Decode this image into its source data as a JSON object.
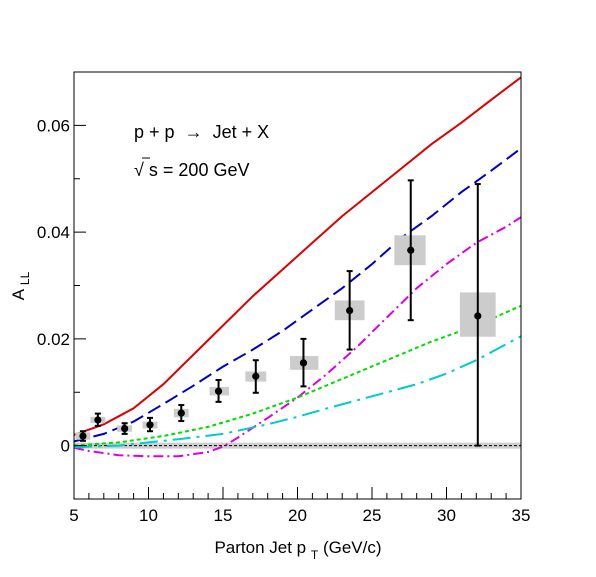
{
  "chart_data": {
    "type": "scatter",
    "annotations": {
      "process_prefix": "p + p",
      "process_arrow": "→",
      "process_suffix": "Jet + X",
      "energy_sqrt": "√",
      "energy_rest": "s = 200 GeV"
    },
    "xlabel": {
      "main": "Parton Jet p",
      "sub": "T",
      "tail": " (GeV/c)"
    },
    "ylabel": {
      "main": "A",
      "sub": "LL"
    },
    "xlim": [
      5,
      35
    ],
    "ylim": [
      -0.01,
      0.07
    ],
    "x_ticks": [
      {
        "v": 5,
        "label": "5"
      },
      {
        "v": 10,
        "label": "10"
      },
      {
        "v": 15,
        "label": "15"
      },
      {
        "v": 20,
        "label": "20"
      },
      {
        "v": 25,
        "label": "25"
      },
      {
        "v": 30,
        "label": "30"
      },
      {
        "v": 35,
        "label": "35"
      }
    ],
    "y_ticks": [
      {
        "v": 0,
        "label": "0"
      },
      {
        "v": 0.02,
        "label": "0.02"
      },
      {
        "v": 0.04,
        "label": "0.04"
      },
      {
        "v": 0.06,
        "label": "0.06"
      }
    ],
    "grid": false,
    "zero_line": 0,
    "series": [
      {
        "color": "#000000",
        "points": [
          {
            "x": 5.6,
            "y": 0.0018,
            "ylo": 0.0009,
            "yhi": 0.0027,
            "sxlo": 5.1,
            "sxhi": 6.1,
            "sylo": 0.0011,
            "syhi": 0.0025
          },
          {
            "x": 6.6,
            "y": 0.0048,
            "ylo": 0.0037,
            "yhi": 0.006,
            "sxlo": 6.1,
            "sxhi": 7.1,
            "sylo": 0.0042,
            "syhi": 0.0054
          },
          {
            "x": 8.4,
            "y": 0.0032,
            "ylo": 0.0022,
            "yhi": 0.0042,
            "sxlo": 7.9,
            "sxhi": 8.9,
            "sylo": 0.0026,
            "syhi": 0.0038
          },
          {
            "x": 10.1,
            "y": 0.0039,
            "ylo": 0.0027,
            "yhi": 0.0052,
            "sxlo": 9.6,
            "sxhi": 10.6,
            "sylo": 0.0032,
            "syhi": 0.0045
          },
          {
            "x": 12.2,
            "y": 0.0061,
            "ylo": 0.0046,
            "yhi": 0.0076,
            "sxlo": 11.7,
            "sxhi": 12.7,
            "sylo": 0.0053,
            "syhi": 0.0069
          },
          {
            "x": 14.7,
            "y": 0.0102,
            "ylo": 0.0082,
            "yhi": 0.0123,
            "sxlo": 14.1,
            "sxhi": 15.4,
            "sylo": 0.0094,
            "syhi": 0.011
          },
          {
            "x": 17.2,
            "y": 0.013,
            "ylo": 0.0099,
            "yhi": 0.016,
            "sxlo": 16.5,
            "sxhi": 17.9,
            "sylo": 0.012,
            "syhi": 0.0139
          },
          {
            "x": 20.4,
            "y": 0.0155,
            "ylo": 0.0111,
            "yhi": 0.02,
            "sxlo": 19.5,
            "sxhi": 21.4,
            "sylo": 0.0142,
            "syhi": 0.0168
          },
          {
            "x": 23.5,
            "y": 0.0253,
            "ylo": 0.018,
            "yhi": 0.0327,
            "sxlo": 22.5,
            "sxhi": 24.5,
            "sylo": 0.0235,
            "syhi": 0.0272
          },
          {
            "x": 27.6,
            "y": 0.0366,
            "ylo": 0.0235,
            "yhi": 0.0497,
            "sxlo": 26.5,
            "sxhi": 28.6,
            "sylo": 0.0338,
            "syhi": 0.0394
          },
          {
            "x": 32.1,
            "y": 0.0243,
            "ylo": 0.0,
            "yhi": 0.049,
            "sxlo": 30.9,
            "sxhi": 33.3,
            "sylo": 0.0204,
            "syhi": 0.0287
          }
        ]
      }
    ],
    "curves": [
      {
        "color": "#dd0000",
        "style": "solid",
        "points": [
          [
            5,
            0.002
          ],
          [
            7,
            0.004
          ],
          [
            9,
            0.007
          ],
          [
            11,
            0.0115
          ],
          [
            13,
            0.017
          ],
          [
            15,
            0.0225
          ],
          [
            17,
            0.028
          ],
          [
            19,
            0.033
          ],
          [
            21,
            0.038
          ],
          [
            23,
            0.043
          ],
          [
            25,
            0.0475
          ],
          [
            27,
            0.052
          ],
          [
            29,
            0.0565
          ],
          [
            31,
            0.0605
          ],
          [
            33,
            0.0648
          ],
          [
            35,
            0.069
          ]
        ]
      },
      {
        "color": "#0000cc",
        "style": "dashed",
        "points": [
          [
            5,
            0.0008
          ],
          [
            7,
            0.0022
          ],
          [
            9,
            0.0045
          ],
          [
            11,
            0.0078
          ],
          [
            13,
            0.0112
          ],
          [
            15,
            0.0148
          ],
          [
            17,
            0.018
          ],
          [
            19,
            0.0215
          ],
          [
            21,
            0.0255
          ],
          [
            23,
            0.0295
          ],
          [
            25,
            0.034
          ],
          [
            27,
            0.039
          ],
          [
            29,
            0.043
          ],
          [
            31,
            0.0475
          ],
          [
            33,
            0.0515
          ],
          [
            35,
            0.0557
          ]
        ]
      },
      {
        "color": "#dd00dd",
        "style": "dashdot",
        "points": [
          [
            5,
            -0.0004
          ],
          [
            6,
            -0.001
          ],
          [
            8,
            -0.0018
          ],
          [
            10,
            -0.002
          ],
          [
            12,
            -0.002
          ],
          [
            14,
            -0.0012
          ],
          [
            15,
            -0.0002
          ],
          [
            16,
            0.0015
          ],
          [
            18,
            0.0052
          ],
          [
            20,
            0.009
          ],
          [
            22,
            0.0135
          ],
          [
            24,
            0.0185
          ],
          [
            26,
            0.024
          ],
          [
            28,
            0.0295
          ],
          [
            30,
            0.034
          ],
          [
            32,
            0.038
          ],
          [
            34,
            0.041
          ],
          [
            35,
            0.0428
          ]
        ]
      },
      {
        "color": "#00dd00",
        "style": "dotted",
        "points": [
          [
            5,
            0.0
          ],
          [
            8,
            0.0006
          ],
          [
            11,
            0.0018
          ],
          [
            14,
            0.0035
          ],
          [
            17,
            0.006
          ],
          [
            20,
            0.009
          ],
          [
            23,
            0.0125
          ],
          [
            26,
            0.016
          ],
          [
            29,
            0.0195
          ],
          [
            32,
            0.0225
          ],
          [
            35,
            0.0262
          ]
        ]
      },
      {
        "color": "#00cccc",
        "style": "longdashdot",
        "points": [
          [
            5,
            -0.0003
          ],
          [
            8,
            0.0
          ],
          [
            10,
            0.0006
          ],
          [
            12,
            0.0012
          ],
          [
            15,
            0.0022
          ],
          [
            18,
            0.004
          ],
          [
            20,
            0.0054
          ],
          [
            22,
            0.007
          ],
          [
            24,
            0.0085
          ],
          [
            26,
            0.01
          ],
          [
            28,
            0.0115
          ],
          [
            30,
            0.0135
          ],
          [
            32,
            0.016
          ],
          [
            34,
            0.019
          ],
          [
            35,
            0.0205
          ]
        ]
      }
    ]
  }
}
